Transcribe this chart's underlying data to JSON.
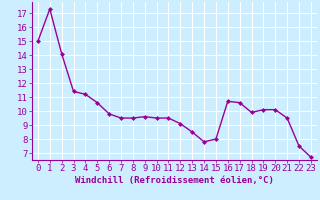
{
  "x": [
    0,
    1,
    2,
    3,
    4,
    5,
    6,
    7,
    8,
    9,
    10,
    11,
    12,
    13,
    14,
    15,
    16,
    17,
    18,
    19,
    20,
    21,
    22,
    23
  ],
  "y": [
    15.0,
    17.3,
    14.1,
    11.4,
    11.2,
    10.6,
    9.8,
    9.5,
    9.5,
    9.6,
    9.5,
    9.5,
    9.1,
    8.5,
    7.8,
    8.0,
    10.7,
    10.6,
    9.9,
    10.1,
    10.1,
    9.5,
    7.5,
    6.7
  ],
  "line_color": "#990099",
  "marker": "D",
  "marker_size": 2.0,
  "line_width": 1.0,
  "xlabel": "Windchill (Refroidissement éolien,°C)",
  "xlabel_fontsize": 6.5,
  "ylabel_ticks": [
    7,
    8,
    9,
    10,
    11,
    12,
    13,
    14,
    15,
    16,
    17
  ],
  "xlim": [
    -0.5,
    23.5
  ],
  "ylim": [
    6.5,
    17.8
  ],
  "bg_color": "#cceeff",
  "grid_color": "#ffffff",
  "tick_fontsize": 6.5,
  "tick_label_color": "#990099",
  "xlabel_color": "#990099",
  "spine_color": "#990099"
}
